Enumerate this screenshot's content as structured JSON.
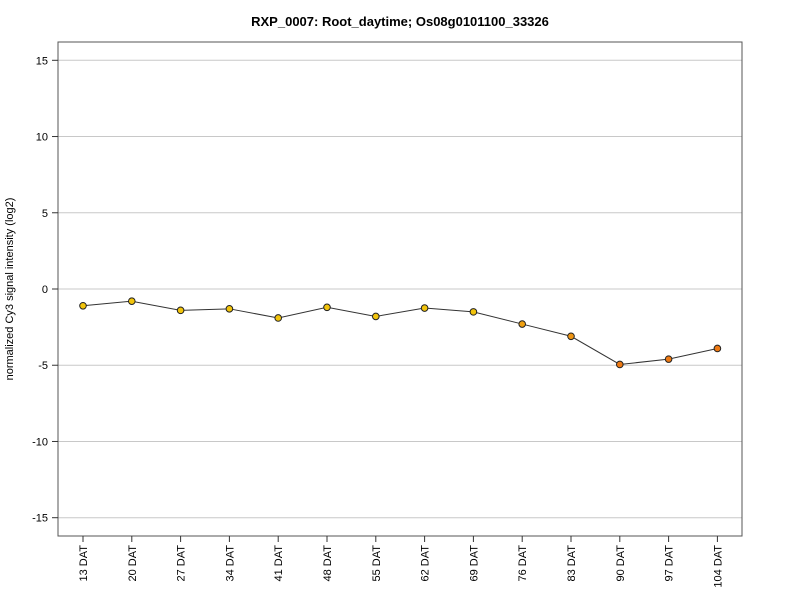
{
  "chart_data": {
    "type": "line",
    "title": "RXP_0007: Root_daytime; Os08g0101100_33326",
    "xlabel": "",
    "ylabel": "normalized Cy3 signal intensity (log2)",
    "categories": [
      "13 DAT",
      "20 DAT",
      "27 DAT",
      "34 DAT",
      "41 DAT",
      "48 DAT",
      "55 DAT",
      "62 DAT",
      "69 DAT",
      "76 DAT",
      "83 DAT",
      "90 DAT",
      "97 DAT",
      "104 DAT"
    ],
    "series": [
      {
        "values": [
          -1.1,
          -0.8,
          -1.4,
          -1.3,
          -1.9,
          -1.2,
          -1.8,
          -1.25,
          -1.5,
          -2.3,
          -3.1,
          -4.95,
          -4.6,
          -3.9
        ],
        "point_colors": [
          "#f2c40c",
          "#f2c40c",
          "#f2c40c",
          "#f2c40c",
          "#f2c40c",
          "#f2c40c",
          "#f2c40c",
          "#f2c40c",
          "#f2c40c",
          "#f0a010",
          "#ee9514",
          "#ee7a14",
          "#ee7a14",
          "#ee7a14"
        ]
      }
    ],
    "yticks": [
      15,
      10,
      5,
      0,
      -5,
      -10,
      -15
    ],
    "ylim": [
      -16.2,
      16.2
    ],
    "grid": true,
    "line_color": "#333333",
    "grid_color": "#c8c8c8"
  }
}
